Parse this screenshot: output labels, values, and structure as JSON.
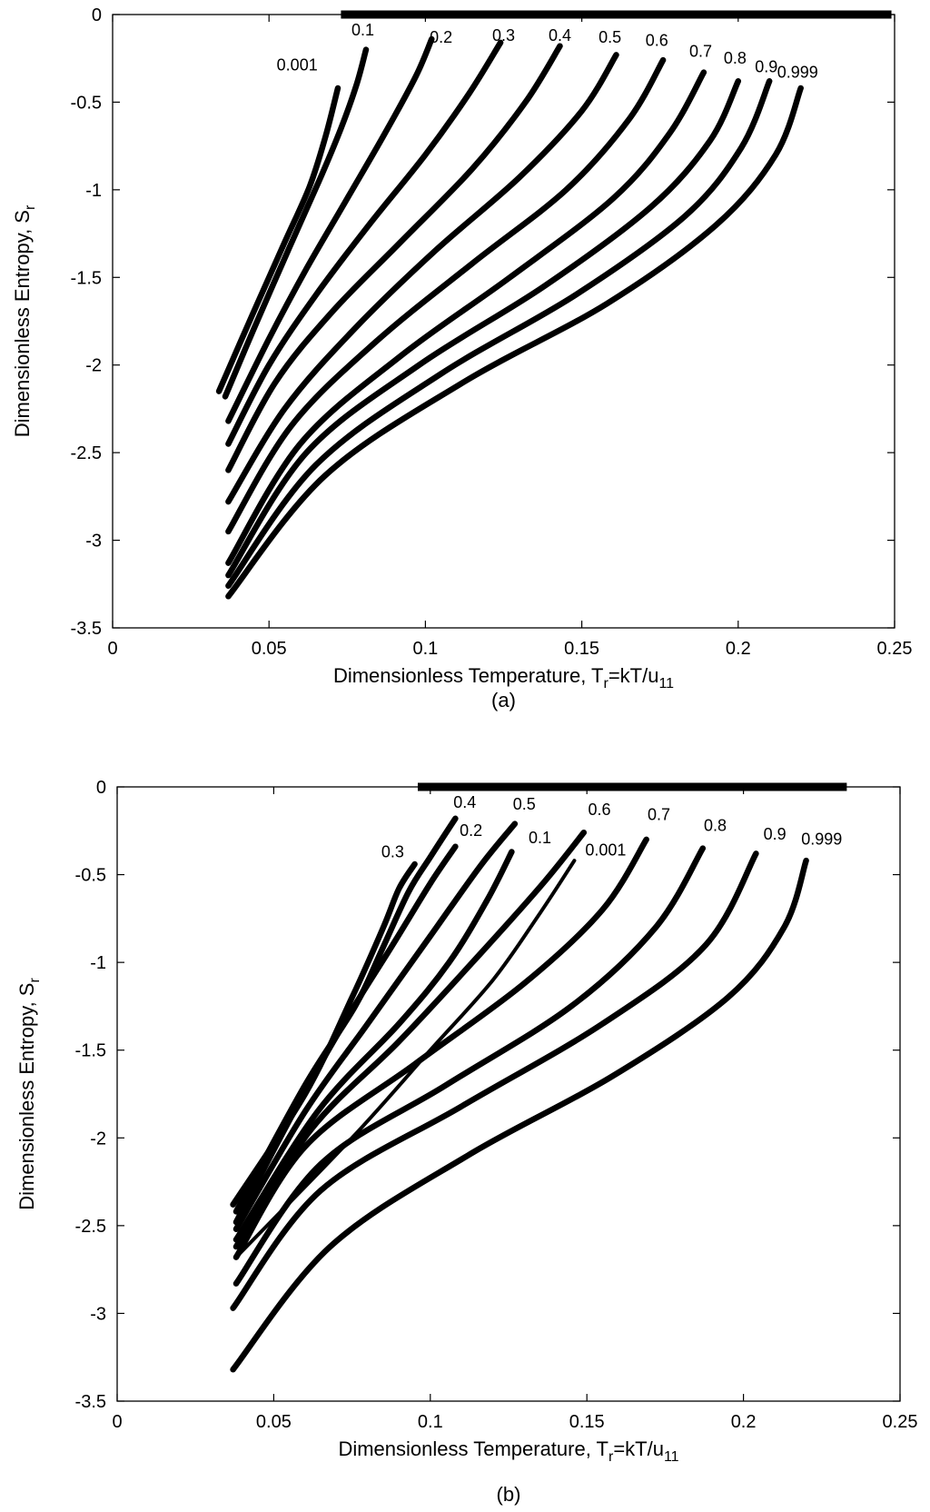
{
  "chart_data": [
    {
      "type": "line",
      "panel": "(a)",
      "xlabel": "Dimensionless Temperature, T",
      "xlabel_sub": "r",
      "xlabel_tail": "=kT/u",
      "xlabel_sub2": "11",
      "ylabel": "Dimensionless Entropy, S",
      "ylabel_sub": "r",
      "xlim": [
        0,
        0.25
      ],
      "ylim": [
        -3.5,
        0
      ],
      "xticks": [
        0,
        0.05,
        0.1,
        0.15,
        0.2,
        0.25
      ],
      "xtick_labels": [
        "0",
        "0.05",
        "0.1",
        "0.15",
        "0.2",
        "0.25"
      ],
      "yticks": [
        0,
        -0.5,
        -1,
        -1.5,
        -2,
        -2.5,
        -3,
        -3.5
      ],
      "ytick_labels": [
        "0",
        "-0.5",
        "-1",
        "-1.5",
        "-2",
        "-2.5",
        "-3",
        "-3.5"
      ],
      "baseline": {
        "x": [
          0.073,
          0.249
        ],
        "y": [
          0,
          0
        ]
      },
      "series": [
        {
          "name": "0.001",
          "x": [
            0.034,
            0.045,
            0.055,
            0.063,
            0.068,
            0.072
          ],
          "y": [
            -2.15,
            -1.7,
            -1.3,
            -0.98,
            -0.7,
            -0.42
          ]
        },
        {
          "name": "0.1",
          "x": [
            0.036,
            0.045,
            0.056,
            0.066,
            0.073,
            0.078,
            0.081
          ],
          "y": [
            -2.18,
            -1.8,
            -1.35,
            -0.95,
            -0.65,
            -0.4,
            -0.2
          ]
        },
        {
          "name": "0.2",
          "x": [
            0.037,
            0.05,
            0.062,
            0.075,
            0.087,
            0.097,
            0.102
          ],
          "y": [
            -2.32,
            -1.85,
            -1.45,
            -1.05,
            -0.68,
            -0.35,
            -0.14
          ]
        },
        {
          "name": "0.3",
          "x": [
            0.037,
            0.05,
            0.065,
            0.082,
            0.1,
            0.114,
            0.124
          ],
          "y": [
            -2.45,
            -2.0,
            -1.6,
            -1.2,
            -0.8,
            -0.45,
            -0.16
          ]
        },
        {
          "name": "0.4",
          "x": [
            0.037,
            0.052,
            0.07,
            0.092,
            0.115,
            0.132,
            0.143
          ],
          "y": [
            -2.6,
            -2.1,
            -1.7,
            -1.3,
            -0.88,
            -0.5,
            -0.18
          ]
        },
        {
          "name": "0.5",
          "x": [
            0.037,
            0.055,
            0.077,
            0.103,
            0.13,
            0.15,
            0.161
          ],
          "y": [
            -2.78,
            -2.25,
            -1.8,
            -1.35,
            -0.93,
            -0.55,
            -0.23
          ]
        },
        {
          "name": "0.6",
          "x": [
            0.037,
            0.057,
            0.084,
            0.115,
            0.145,
            0.165,
            0.176
          ],
          "y": [
            -2.95,
            -2.35,
            -1.87,
            -1.42,
            -1.0,
            -0.6,
            -0.26
          ]
        },
        {
          "name": "0.7",
          "x": [
            0.037,
            0.06,
            0.092,
            0.127,
            0.16,
            0.178,
            0.189
          ],
          "y": [
            -3.13,
            -2.45,
            -1.95,
            -1.5,
            -1.05,
            -0.68,
            -0.33
          ]
        },
        {
          "name": "0.8",
          "x": [
            0.037,
            0.062,
            0.098,
            0.138,
            0.172,
            0.191,
            0.2
          ],
          "y": [
            -3.2,
            -2.5,
            -2.0,
            -1.55,
            -1.1,
            -0.72,
            -0.38
          ]
        },
        {
          "name": "0.9",
          "x": [
            0.037,
            0.065,
            0.105,
            0.148,
            0.183,
            0.201,
            0.21
          ],
          "y": [
            -3.26,
            -2.57,
            -2.05,
            -1.6,
            -1.15,
            -0.76,
            -0.38
          ]
        },
        {
          "name": "0.999",
          "x": [
            0.037,
            0.068,
            0.112,
            0.158,
            0.193,
            0.212,
            0.22
          ],
          "y": [
            -3.32,
            -2.63,
            -2.1,
            -1.65,
            -1.2,
            -0.8,
            -0.42
          ]
        }
      ],
      "labels": [
        {
          "text": "0.001",
          "x": 0.059,
          "y": -0.32
        },
        {
          "text": "0.1",
          "x": 0.08,
          "y": -0.12
        },
        {
          "text": "0.2",
          "x": 0.105,
          "y": -0.16
        },
        {
          "text": "0.3",
          "x": 0.125,
          "y": -0.15
        },
        {
          "text": "0.4",
          "x": 0.143,
          "y": -0.15
        },
        {
          "text": "0.5",
          "x": 0.159,
          "y": -0.16
        },
        {
          "text": "0.6",
          "x": 0.174,
          "y": -0.18
        },
        {
          "text": "0.7",
          "x": 0.188,
          "y": -0.24
        },
        {
          "text": "0.8",
          "x": 0.199,
          "y": -0.28
        },
        {
          "text": "0.9",
          "x": 0.209,
          "y": -0.33
        },
        {
          "text": "0.999",
          "x": 0.219,
          "y": -0.36
        }
      ]
    },
    {
      "type": "line",
      "panel": "(b)",
      "xlabel": "Dimensionless Temperature, T",
      "xlabel_sub": "r",
      "xlabel_tail": "=kT/u",
      "xlabel_sub2": "11",
      "ylabel": "Dimensionless Entropy, S",
      "ylabel_sub": "r",
      "xlim": [
        0,
        0.25
      ],
      "ylim": [
        -3.5,
        0
      ],
      "xticks": [
        0,
        0.05,
        0.1,
        0.15,
        0.2,
        0.25
      ],
      "xtick_labels": [
        "0",
        "0.05",
        "0.1",
        "0.15",
        "0.2",
        "0.25"
      ],
      "yticks": [
        0,
        -0.5,
        -1,
        -1.5,
        -2,
        -2.5,
        -3,
        -3.5
      ],
      "ytick_labels": [
        "0",
        "-0.5",
        "-1",
        "-1.5",
        "-2",
        "-2.5",
        "-3",
        "-3.5"
      ],
      "baseline": {
        "x": [
          0.096,
          0.233
        ],
        "y": [
          0,
          0
        ]
      },
      "series": [
        {
          "name": "0.3",
          "x": [
            0.037,
            0.06,
            0.075,
            0.085,
            0.09,
            0.095
          ],
          "y": [
            -2.38,
            -1.75,
            -1.2,
            -0.8,
            -0.58,
            -0.44
          ]
        },
        {
          "name": "0.4",
          "x": [
            0.038,
            0.06,
            0.076,
            0.084,
            0.093,
            0.1,
            0.108
          ],
          "y": [
            -2.42,
            -1.7,
            -1.25,
            -0.95,
            -0.6,
            -0.4,
            -0.18
          ]
        },
        {
          "name": "0.2",
          "x": [
            0.038,
            0.058,
            0.074,
            0.088,
            0.1,
            0.108
          ],
          "y": [
            -2.48,
            -1.8,
            -1.3,
            -0.9,
            -0.55,
            -0.34
          ]
        },
        {
          "name": "0.5",
          "x": [
            0.038,
            0.06,
            0.08,
            0.1,
            0.116,
            0.127
          ],
          "y": [
            -2.52,
            -1.85,
            -1.35,
            -0.85,
            -0.45,
            -0.21
          ]
        },
        {
          "name": "0.1",
          "x": [
            0.038,
            0.064,
            0.09,
            0.106,
            0.118,
            0.126
          ],
          "y": [
            -2.58,
            -1.85,
            -1.35,
            -1.0,
            -0.65,
            -0.37
          ]
        },
        {
          "name": "0.6",
          "x": [
            0.038,
            0.062,
            0.09,
            0.116,
            0.136,
            0.149
          ],
          "y": [
            -2.62,
            -1.95,
            -1.45,
            -0.95,
            -0.55,
            -0.26
          ]
        },
        {
          "name": "0.001",
          "x": [
            0.038,
            0.075,
            0.1,
            0.12,
            0.135,
            0.146
          ],
          "y": [
            -2.68,
            -2.0,
            -1.5,
            -1.1,
            -0.72,
            -0.42
          ]
        },
        {
          "name": "0.7",
          "x": [
            0.038,
            0.06,
            0.095,
            0.13,
            0.155,
            0.169
          ],
          "y": [
            -2.68,
            -2.05,
            -1.58,
            -1.12,
            -0.7,
            -0.3
          ]
        },
        {
          "name": "0.8",
          "x": [
            0.038,
            0.065,
            0.105,
            0.145,
            0.172,
            0.187
          ],
          "y": [
            -2.83,
            -2.15,
            -1.7,
            -1.25,
            -0.8,
            -0.35
          ]
        },
        {
          "name": "0.9",
          "x": [
            0.037,
            0.065,
            0.11,
            0.155,
            0.188,
            0.204
          ],
          "y": [
            -2.97,
            -2.3,
            -1.82,
            -1.35,
            -0.9,
            -0.38
          ]
        },
        {
          "name": "0.999",
          "x": [
            0.037,
            0.068,
            0.112,
            0.158,
            0.195,
            0.213,
            0.22
          ],
          "y": [
            -3.32,
            -2.62,
            -2.1,
            -1.65,
            -1.2,
            -0.8,
            -0.42
          ]
        }
      ],
      "labels": [
        {
          "text": "0.4",
          "x": 0.111,
          "y": -0.12
        },
        {
          "text": "0.5",
          "x": 0.13,
          "y": -0.13
        },
        {
          "text": "0.6",
          "x": 0.154,
          "y": -0.16
        },
        {
          "text": "0.2",
          "x": 0.113,
          "y": -0.28
        },
        {
          "text": "0.1",
          "x": 0.135,
          "y": -0.32
        },
        {
          "text": "0.001",
          "x": 0.156,
          "y": -0.39
        },
        {
          "text": "0.7",
          "x": 0.173,
          "y": -0.19
        },
        {
          "text": "0.8",
          "x": 0.191,
          "y": -0.25
        },
        {
          "text": "0.9",
          "x": 0.21,
          "y": -0.3
        },
        {
          "text": "0.999",
          "x": 0.225,
          "y": -0.33
        },
        {
          "text": "0.3",
          "x": 0.088,
          "y": -0.4
        }
      ]
    }
  ]
}
